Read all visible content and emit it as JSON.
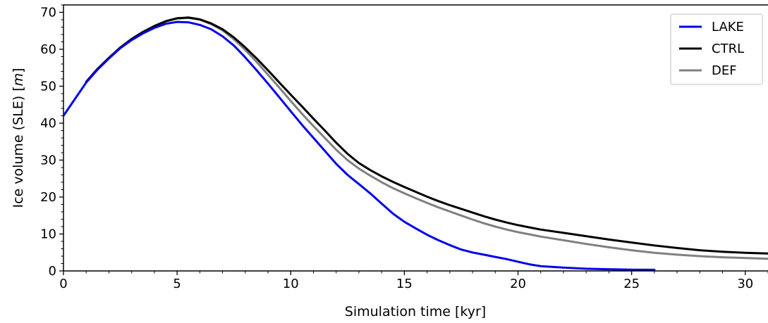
{
  "chart_data": {
    "type": "line",
    "xlabel": "Simulation time [kyr]",
    "ylabel_text": "Ice volume (SLE) [",
    "ylabel_unit": "m",
    "ylabel_close": "]",
    "xlim": [
      0,
      31
    ],
    "ylim": [
      0,
      72
    ],
    "x_ticks": [
      0,
      5,
      10,
      15,
      20,
      25,
      30
    ],
    "x_tick_labels": [
      "0",
      "5",
      "10",
      "15",
      "20",
      "25",
      "30"
    ],
    "y_ticks": [
      0,
      10,
      20,
      30,
      40,
      50,
      60,
      70
    ],
    "y_tick_labels": [
      "0",
      "10",
      "20",
      "30",
      "40",
      "50",
      "60",
      "70"
    ],
    "x_minor_step": 1,
    "y_minor_step": 2,
    "grid": false,
    "legend_position": "top-right",
    "series": [
      {
        "name": "LAKE",
        "color": "#0000ee",
        "points": [
          [
            0,
            42
          ],
          [
            0.5,
            46.5
          ],
          [
            1,
            51
          ],
          [
            1.5,
            54.5
          ],
          [
            2,
            57.5
          ],
          [
            2.5,
            60.3
          ],
          [
            3,
            62.5
          ],
          [
            3.5,
            64.3
          ],
          [
            4,
            65.8
          ],
          [
            4.5,
            66.9
          ],
          [
            5,
            67.4
          ],
          [
            5.5,
            67.3
          ],
          [
            6,
            66.6
          ],
          [
            6.5,
            65.4
          ],
          [
            7,
            63.5
          ],
          [
            7.5,
            61
          ],
          [
            8,
            57.8
          ],
          [
            8.5,
            54.3
          ],
          [
            9,
            50.7
          ],
          [
            9.5,
            47
          ],
          [
            10,
            43.2
          ],
          [
            10.5,
            39.5
          ],
          [
            11,
            36
          ],
          [
            11.5,
            32.5
          ],
          [
            12,
            29
          ],
          [
            12.5,
            26
          ],
          [
            13,
            23.5
          ],
          [
            13.5,
            21
          ],
          [
            14,
            18.2
          ],
          [
            14.5,
            15.5
          ],
          [
            15,
            13.3
          ],
          [
            15.5,
            11.5
          ],
          [
            16,
            9.8
          ],
          [
            16.5,
            8.3
          ],
          [
            17,
            7
          ],
          [
            17.5,
            5.8
          ],
          [
            18,
            5
          ],
          [
            18.5,
            4.4
          ],
          [
            19,
            3.8
          ],
          [
            19.5,
            3.2
          ],
          [
            20,
            2.5
          ],
          [
            20.5,
            1.8
          ],
          [
            21,
            1.3
          ],
          [
            22,
            0.9
          ],
          [
            23,
            0.6
          ],
          [
            24,
            0.45
          ],
          [
            25,
            0.35
          ],
          [
            26,
            0.3
          ]
        ]
      },
      {
        "name": "CTRL",
        "color": "#000000",
        "points": [
          [
            1,
            51.2
          ],
          [
            1.5,
            54.7
          ],
          [
            2,
            57.7
          ],
          [
            2.5,
            60.5
          ],
          [
            3,
            62.8
          ],
          [
            3.5,
            64.7
          ],
          [
            4,
            66.3
          ],
          [
            4.5,
            67.6
          ],
          [
            5,
            68.4
          ],
          [
            5.5,
            68.6
          ],
          [
            6,
            68.1
          ],
          [
            6.5,
            67
          ],
          [
            7,
            65.4
          ],
          [
            7.5,
            63.2
          ],
          [
            8,
            60.5
          ],
          [
            8.5,
            57.5
          ],
          [
            9,
            54.3
          ],
          [
            9.5,
            51
          ],
          [
            10,
            47.7
          ],
          [
            10.5,
            44.5
          ],
          [
            11,
            41.2
          ],
          [
            11.5,
            38
          ],
          [
            12,
            34.7
          ],
          [
            12.5,
            31.7
          ],
          [
            13,
            29.2
          ],
          [
            13.5,
            27.3
          ],
          [
            14,
            25.6
          ],
          [
            14.5,
            24.1
          ],
          [
            15,
            22.7
          ],
          [
            15.5,
            21.4
          ],
          [
            16,
            20.1
          ],
          [
            16.5,
            18.9
          ],
          [
            17,
            17.8
          ],
          [
            17.5,
            16.8
          ],
          [
            18,
            15.8
          ],
          [
            18.5,
            14.8
          ],
          [
            19,
            13.9
          ],
          [
            19.5,
            13.1
          ],
          [
            20,
            12.4
          ],
          [
            20.5,
            11.8
          ],
          [
            21,
            11.2
          ],
          [
            22,
            10.3
          ],
          [
            23,
            9.4
          ],
          [
            24,
            8.5
          ],
          [
            25,
            7.7
          ],
          [
            26,
            6.9
          ],
          [
            27,
            6.2
          ],
          [
            28,
            5.6
          ],
          [
            29,
            5.2
          ],
          [
            30,
            4.9
          ],
          [
            31,
            4.7
          ]
        ]
      },
      {
        "name": "DEF",
        "color": "#808080",
        "points": [
          [
            1,
            51.1
          ],
          [
            1.5,
            54.6
          ],
          [
            2,
            57.6
          ],
          [
            2.5,
            60.4
          ],
          [
            3,
            62.7
          ],
          [
            3.5,
            64.6
          ],
          [
            4,
            66.2
          ],
          [
            4.5,
            67.5
          ],
          [
            5,
            68.3
          ],
          [
            5.5,
            68.5
          ],
          [
            6,
            68
          ],
          [
            6.5,
            66.8
          ],
          [
            7,
            65.1
          ],
          [
            7.5,
            62.7
          ],
          [
            8,
            59.8
          ],
          [
            8.5,
            56.6
          ],
          [
            9,
            53.1
          ],
          [
            9.5,
            49.6
          ],
          [
            10,
            46
          ],
          [
            10.5,
            42.5
          ],
          [
            11,
            39.2
          ],
          [
            11.5,
            36
          ],
          [
            12,
            32.8
          ],
          [
            12.5,
            30
          ],
          [
            13,
            27.7
          ],
          [
            13.5,
            25.8
          ],
          [
            14,
            24
          ],
          [
            14.5,
            22.4
          ],
          [
            15,
            21
          ],
          [
            15.5,
            19.7
          ],
          [
            16,
            18.4
          ],
          [
            16.5,
            17.2
          ],
          [
            17,
            16.1
          ],
          [
            17.5,
            15
          ],
          [
            18,
            13.9
          ],
          [
            18.5,
            12.9
          ],
          [
            19,
            12
          ],
          [
            19.5,
            11.2
          ],
          [
            20,
            10.5
          ],
          [
            20.5,
            9.9
          ],
          [
            21,
            9.3
          ],
          [
            22,
            8.3
          ],
          [
            23,
            7.3
          ],
          [
            24,
            6.4
          ],
          [
            25,
            5.6
          ],
          [
            26,
            4.9
          ],
          [
            27,
            4.4
          ],
          [
            28,
            4
          ],
          [
            29,
            3.7
          ],
          [
            30,
            3.5
          ],
          [
            31,
            3.3
          ]
        ]
      }
    ]
  }
}
